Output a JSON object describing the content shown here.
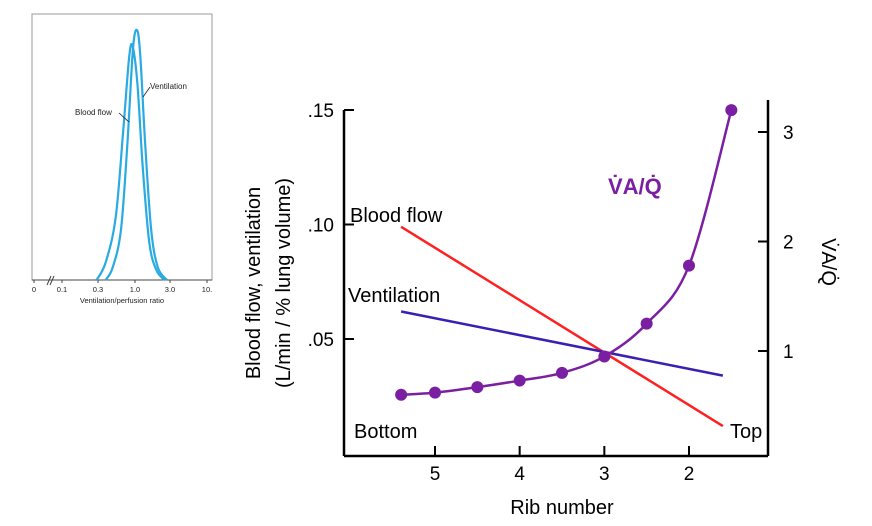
{
  "chart_data": [
    {
      "type": "line",
      "panel": "inset",
      "xlabel": "Ventilation/perfusion ratio",
      "x_scale": "log",
      "x_ticks": [
        "0",
        "0.1",
        "0.3",
        "1.0",
        "3.0",
        "10."
      ],
      "series": [
        {
          "name": "Blood flow",
          "color": "#29abe2",
          "x": [
            0.3,
            0.4,
            0.55,
            0.7,
            0.85,
            0.95,
            1.1,
            1.3,
            1.6,
            2.0,
            2.6
          ],
          "y": [
            0.0,
            0.07,
            0.25,
            0.6,
            0.9,
            0.93,
            0.78,
            0.45,
            0.15,
            0.04,
            0.0
          ]
        },
        {
          "name": "Ventilation",
          "color": "#29abe2",
          "x": [
            0.4,
            0.5,
            0.65,
            0.8,
            0.95,
            1.08,
            1.2,
            1.4,
            1.7,
            2.1,
            2.8
          ],
          "y": [
            0.0,
            0.05,
            0.2,
            0.55,
            0.92,
            1.0,
            0.9,
            0.55,
            0.2,
            0.05,
            0.0
          ]
        }
      ],
      "labels": {
        "blood_flow": "Blood flow",
        "ventilation": "Ventilation"
      }
    },
    {
      "type": "line",
      "panel": "main",
      "xlabel": "Rib number",
      "ylabel_line1": "Blood flow, ventilation",
      "ylabel_line2": "(L/min / % lung volume)",
      "ylabel_right": "V̇A/Q̇",
      "x_reversed": true,
      "xlim": [
        6.0,
        1.0
      ],
      "ylim": [
        0.0,
        0.16
      ],
      "ylim_right": [
        0.0,
        3.3
      ],
      "x_ticks": [
        "5",
        "4",
        "3",
        "2"
      ],
      "y_ticks": [
        ".05",
        ".10",
        ".15"
      ],
      "y_ticks_right": [
        "1",
        "2",
        "3"
      ],
      "series": [
        {
          "name": "Blood flow",
          "color": "#ff2020",
          "x": [
            5.4,
            1.6
          ],
          "y": [
            0.099,
            0.012
          ]
        },
        {
          "name": "Ventilation",
          "color": "#3a1fb0",
          "x": [
            5.4,
            1.6
          ],
          "y": [
            0.062,
            0.034
          ]
        },
        {
          "name": "V̇A/Q̇",
          "color": "#7b1fa2",
          "axis": "right",
          "markers": true,
          "x": [
            5.4,
            5.0,
            4.5,
            4.0,
            3.5,
            3.0,
            2.5,
            2.0,
            1.5
          ],
          "y": [
            0.6,
            0.62,
            0.67,
            0.73,
            0.8,
            0.95,
            1.25,
            1.78,
            3.2
          ]
        }
      ],
      "annotations": {
        "blood_flow": "Blood flow",
        "ventilation": "Ventilation",
        "vaq": "V̇A/Q̇",
        "bottom": "Bottom",
        "top": "Top"
      }
    }
  ],
  "colors": {
    "inset": "#29abe2",
    "blood_flow": "#ff2020",
    "ventilation": "#3a1fb0",
    "vaq": "#7b1fa2"
  }
}
